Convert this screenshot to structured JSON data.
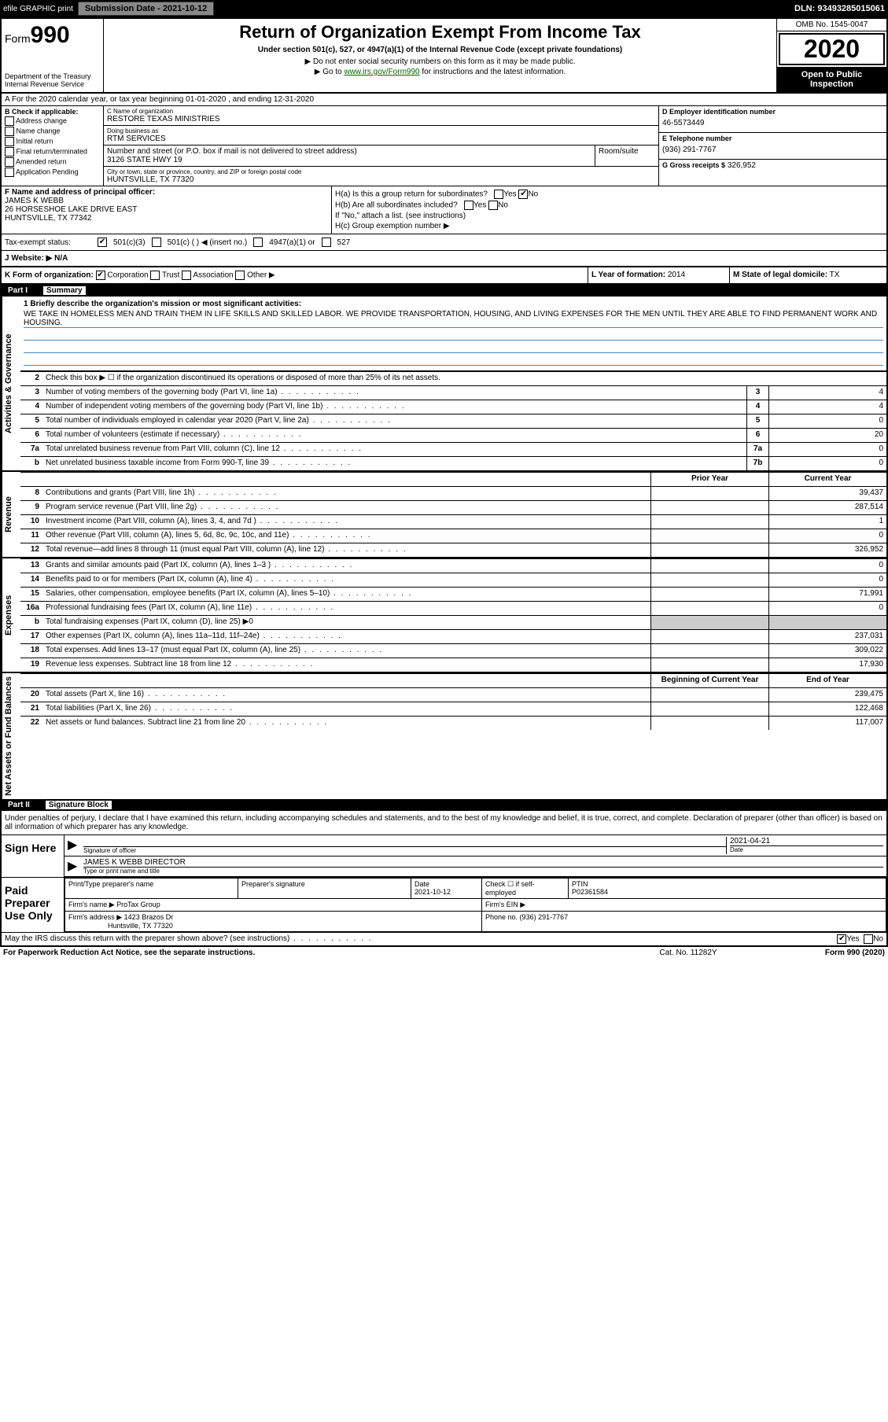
{
  "toolbar": {
    "efile": "efile GRAPHIC print",
    "submission": "Submission Date - 2021-10-12",
    "dln": "DLN: 93493285015061"
  },
  "header": {
    "form_word": "Form",
    "form_num": "990",
    "title": "Return of Organization Exempt From Income Tax",
    "subtitle": "Under section 501(c), 527, or 4947(a)(1) of the Internal Revenue Code (except private foundations)",
    "note1": "▶ Do not enter social security numbers on this form as it may be made public.",
    "note2_pre": "▶ Go to ",
    "note2_link": "www.irs.gov/Form990",
    "note2_post": " for instructions and the latest information.",
    "dept": "Department of the Treasury\nInternal Revenue Service",
    "omb": "OMB No. 1545-0047",
    "year": "2020",
    "inspect": "Open to Public Inspection"
  },
  "period": "A For the 2020 calendar year, or tax year beginning 01-01-2020    , and ending 12-31-2020",
  "checkB": {
    "title": "B Check if applicable:",
    "opts": [
      "Address change",
      "Name change",
      "Initial return",
      "Final return/terminated",
      "Amended return",
      "Application Pending"
    ]
  },
  "boxC": {
    "name_lbl": "C Name of organization",
    "name": "RESTORE TEXAS MINISTRIES",
    "dba_lbl": "Doing business as",
    "dba": "RTM SERVICES",
    "street_lbl": "Number and street (or P.O. box if mail is not delivered to street address)",
    "street": "3126 STATE HWY 19",
    "room_lbl": "Room/suite",
    "city_lbl": "City or town, state or province, country, and ZIP or foreign postal code",
    "city": "HUNTSVILLE, TX  77320"
  },
  "boxD": {
    "lbl": "D Employer identification number",
    "val": "46-5573449"
  },
  "boxE": {
    "lbl": "E Telephone number",
    "val": "(936) 291-7767"
  },
  "boxG": {
    "lbl": "G Gross receipts $",
    "val": "326,952"
  },
  "boxF": {
    "lbl": "F  Name and address of principal officer:",
    "name": "JAMES K WEBB",
    "addr1": "26 HORSESHOE LAKE DRIVE EAST",
    "addr2": "HUNTSVILLE, TX  77342"
  },
  "boxH": {
    "a": "H(a)  Is this a group return for subordinates?",
    "a_yes": "Yes",
    "a_no": "No",
    "b": "H(b)  Are all subordinates included?",
    "b_yes": "Yes",
    "b_no": "No",
    "note": "If \"No,\" attach a list. (see instructions)",
    "c": "H(c)  Group exemption number ▶"
  },
  "boxI": {
    "lbl": "Tax-exempt status:",
    "o1": "501(c)(3)",
    "o2": "501(c) (  ) ◀ (insert no.)",
    "o3": "4947(a)(1) or",
    "o4": "527"
  },
  "boxJ": {
    "lbl": "J   Website: ▶",
    "val": "N/A"
  },
  "boxK": {
    "lbl": "K Form of organization:",
    "o1": "Corporation",
    "o2": "Trust",
    "o3": "Association",
    "o4": "Other ▶"
  },
  "boxL": {
    "lbl": "L Year of formation:",
    "val": "2014"
  },
  "boxM": {
    "lbl": "M State of legal domicile:",
    "val": "TX"
  },
  "part1": {
    "num": "Part I",
    "title": "Summary"
  },
  "mission": {
    "lbl": "1  Briefly describe the organization's mission or most significant activities:",
    "text": "WE TAKE IN HOMELESS MEN AND TRAIN THEM IN LIFE SKILLS AND SKILLED LABOR. WE PROVIDE TRANSPORTATION, HOUSING, AND LIVING EXPENSES FOR THE MEN UNTIL THEY ARE ABLE TO FIND PERMANENT WORK AND HOUSING."
  },
  "line2": "Check this box ▶ ☐ if the organization discontinued its operations or disposed of more than 25% of its net assets.",
  "govlines": [
    {
      "n": "3",
      "t": "Number of voting members of the governing body (Part VI, line 1a)",
      "b": "3",
      "v": "4"
    },
    {
      "n": "4",
      "t": "Number of independent voting members of the governing body (Part VI, line 1b)",
      "b": "4",
      "v": "4"
    },
    {
      "n": "5",
      "t": "Total number of individuals employed in calendar year 2020 (Part V, line 2a)",
      "b": "5",
      "v": "0"
    },
    {
      "n": "6",
      "t": "Total number of volunteers (estimate if necessary)",
      "b": "6",
      "v": "20"
    },
    {
      "n": "7a",
      "t": "Total unrelated business revenue from Part VIII, column (C), line 12",
      "b": "7a",
      "v": "0"
    },
    {
      "n": "b",
      "t": "Net unrelated business taxable income from Form 990-T, line 39",
      "b": "7b",
      "v": "0"
    }
  ],
  "colhdr": {
    "prior": "Prior Year",
    "current": "Current Year"
  },
  "revenue": [
    {
      "n": "8",
      "t": "Contributions and grants (Part VIII, line 1h)",
      "p": "",
      "c": "39,437"
    },
    {
      "n": "9",
      "t": "Program service revenue (Part VIII, line 2g)",
      "p": "",
      "c": "287,514"
    },
    {
      "n": "10",
      "t": "Investment income (Part VIII, column (A), lines 3, 4, and 7d )",
      "p": "",
      "c": "1"
    },
    {
      "n": "11",
      "t": "Other revenue (Part VIII, column (A), lines 5, 6d, 8c, 9c, 10c, and 11e)",
      "p": "",
      "c": "0"
    },
    {
      "n": "12",
      "t": "Total revenue—add lines 8 through 11 (must equal Part VIII, column (A), line 12)",
      "p": "",
      "c": "326,952"
    }
  ],
  "expenses": [
    {
      "n": "13",
      "t": "Grants and similar amounts paid (Part IX, column (A), lines 1–3 )",
      "p": "",
      "c": "0"
    },
    {
      "n": "14",
      "t": "Benefits paid to or for members (Part IX, column (A), line 4)",
      "p": "",
      "c": "0"
    },
    {
      "n": "15",
      "t": "Salaries, other compensation, employee benefits (Part IX, column (A), lines 5–10)",
      "p": "",
      "c": "71,991"
    },
    {
      "n": "16a",
      "t": "Professional fundraising fees (Part IX, column (A), line 11e)",
      "p": "",
      "c": "0"
    },
    {
      "n": "b",
      "t": "Total fundraising expenses (Part IX, column (D), line 25) ▶0",
      "shaded": true
    },
    {
      "n": "17",
      "t": "Other expenses (Part IX, column (A), lines 11a–11d, 11f–24e)",
      "p": "",
      "c": "237,031"
    },
    {
      "n": "18",
      "t": "Total expenses. Add lines 13–17 (must equal Part IX, column (A), line 25)",
      "p": "",
      "c": "309,022"
    },
    {
      "n": "19",
      "t": "Revenue less expenses. Subtract line 18 from line 12",
      "p": "",
      "c": "17,930"
    }
  ],
  "colhdr2": {
    "begin": "Beginning of Current Year",
    "end": "End of Year"
  },
  "netassets": [
    {
      "n": "20",
      "t": "Total assets (Part X, line 16)",
      "p": "",
      "c": "239,475"
    },
    {
      "n": "21",
      "t": "Total liabilities (Part X, line 26)",
      "p": "",
      "c": "122,468"
    },
    {
      "n": "22",
      "t": "Net assets or fund balances. Subtract line 21 from line 20",
      "p": "",
      "c": "117,007"
    }
  ],
  "sidelabels": {
    "gov": "Activities & Governance",
    "rev": "Revenue",
    "exp": "Expenses",
    "net": "Net Assets or Fund Balances"
  },
  "part2": {
    "num": "Part II",
    "title": "Signature Block"
  },
  "sig": {
    "declaration": "Under penalties of perjury, I declare that I have examined this return, including accompanying schedules and statements, and to the best of my knowledge and belief, it is true, correct, and complete. Declaration of preparer (other than officer) is based on all information of which preparer has any knowledge.",
    "sign_here": "Sign Here",
    "sig_officer": "Signature of officer",
    "date_lbl": "Date",
    "date": "2021-04-21",
    "name_title": "JAMES K WEBB  DIRECTOR",
    "name_title_lbl": "Type or print name and title",
    "paid": "Paid Preparer Use Only",
    "prep_name_lbl": "Print/Type preparer's name",
    "prep_sig_lbl": "Preparer's signature",
    "prep_date_lbl": "Date",
    "prep_date": "2021-10-12",
    "check_self": "Check ☐ if self-employed",
    "ptin_lbl": "PTIN",
    "ptin": "P02361584",
    "firm_name_lbl": "Firm's name    ▶",
    "firm_name": "ProTax Group",
    "firm_ein_lbl": "Firm's EIN ▶",
    "firm_addr_lbl": "Firm's address ▶",
    "firm_addr1": "1423 Brazos Dr",
    "firm_addr2": "Huntsville, TX  77320",
    "phone_lbl": "Phone no.",
    "phone": "(936) 291-7767"
  },
  "footer": {
    "discuss": "May the IRS discuss this return with the preparer shown above? (see instructions)",
    "yes": "Yes",
    "no": "No",
    "paperwork": "For Paperwork Reduction Act Notice, see the separate instructions.",
    "cat": "Cat. No. 11282Y",
    "formver": "Form 990 (2020)"
  }
}
